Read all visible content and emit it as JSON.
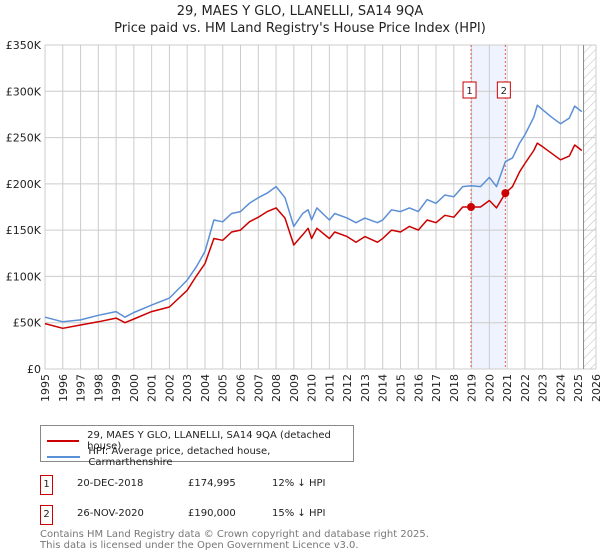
{
  "chart_data": {
    "type": "line",
    "title": "29, MAES Y GLO, LLANELLI, SA14 9QA",
    "subtitle": "Price paid vs. HM Land Registry's House Price Index (HPI)",
    "xlabel": "",
    "ylabel": "",
    "xlim": [
      1995,
      2026
    ],
    "ylim": [
      0,
      350000
    ],
    "grid": true,
    "x_ticks": [
      "1995",
      "1996",
      "1997",
      "1998",
      "1999",
      "2000",
      "2001",
      "2002",
      "2003",
      "2004",
      "2005",
      "2006",
      "2007",
      "2008",
      "2009",
      "2010",
      "2011",
      "2012",
      "2013",
      "2014",
      "2015",
      "2016",
      "2017",
      "2018",
      "2019",
      "2020",
      "2021",
      "2022",
      "2023",
      "2024",
      "2025",
      "2026"
    ],
    "y_ticks": [
      {
        "value": 0,
        "label": "£0"
      },
      {
        "value": 50000,
        "label": "£50K"
      },
      {
        "value": 100000,
        "label": "£100K"
      },
      {
        "value": 150000,
        "label": "£150K"
      },
      {
        "value": 200000,
        "label": "£200K"
      },
      {
        "value": 250000,
        "label": "£250K"
      },
      {
        "value": 300000,
        "label": "£300K"
      },
      {
        "value": 350000,
        "label": "£350K"
      }
    ],
    "x": [
      1995,
      1996,
      1997,
      1998,
      1999,
      1999.5,
      2000,
      2001,
      2002,
      2003,
      2003.5,
      2004,
      2004.5,
      2005,
      2005.5,
      2006,
      2006.5,
      2007,
      2007.5,
      2008,
      2008.5,
      2009,
      2009.5,
      2009.8,
      2010,
      2010.3,
      2011,
      2011.3,
      2012,
      2012.5,
      2013,
      2013.7,
      2014,
      2014.5,
      2015,
      2015.5,
      2016,
      2016.5,
      2017,
      2017.5,
      2018,
      2018.5,
      2018.97,
      2019.5,
      2020,
      2020.4,
      2020.9,
      2021.3,
      2021.7,
      2022,
      2022.5,
      2022.7,
      2023,
      2023.5,
      2024,
      2024.5,
      2024.8,
      2025.2
    ],
    "series": [
      {
        "name": "29, MAES Y GLO, LLANELLI, SA14 9QA (detached house)",
        "color": "#cc0000",
        "values": [
          49000,
          44000,
          47500,
          51000,
          55000,
          50000,
          54000,
          62000,
          67000,
          85000,
          100000,
          114000,
          141000,
          139000,
          148000,
          150000,
          159000,
          164000,
          170000,
          174000,
          163000,
          134000,
          145000,
          152000,
          141000,
          152000,
          141000,
          148000,
          143000,
          137000,
          143000,
          137000,
          141000,
          150000,
          148000,
          154000,
          150000,
          161000,
          158000,
          166000,
          164000,
          175000,
          174995,
          175000,
          182000,
          174000,
          190000,
          197000,
          213000,
          222000,
          236000,
          244000,
          240000,
          233000,
          226000,
          230000,
          242000,
          236000
        ]
      },
      {
        "name": "HPI: Average price, detached house, Carmarthenshire",
        "color": "#5b8fd6",
        "values": [
          56000,
          51000,
          53000,
          58000,
          62000,
          56000,
          61000,
          69000,
          76600,
          96000,
          110000,
          127000,
          161000,
          159000,
          168000,
          170000,
          179000,
          185000,
          190000,
          197000,
          185000,
          154000,
          168000,
          172000,
          161000,
          174000,
          161000,
          168000,
          163000,
          158000,
          163000,
          158000,
          161000,
          172000,
          170000,
          174000,
          170000,
          183000,
          179000,
          188000,
          186000,
          197000,
          198000,
          197000,
          207000,
          197000,
          224000,
          228000,
          244000,
          253000,
          272000,
          285000,
          280000,
          272000,
          265000,
          271000,
          284000,
          278000
        ]
      }
    ],
    "sales": [
      {
        "label": "1",
        "x": 2018.97,
        "value": 174995,
        "date": "20-DEC-2018",
        "price": "£174,995",
        "hpi": "12% ↓ HPI"
      },
      {
        "label": "2",
        "x": 2020.9,
        "value": 190000,
        "date": "26-NOV-2020",
        "price": "£190,000",
        "hpi": "15% ↓ HPI"
      }
    ],
    "forecast_start": 2025.3,
    "legend_placement": "bottom"
  },
  "footer": {
    "line1": "Contains HM Land Registry data © Crown copyright and database right 2025.",
    "line2": "This data is licensed under the Open Government Licence v3.0."
  }
}
